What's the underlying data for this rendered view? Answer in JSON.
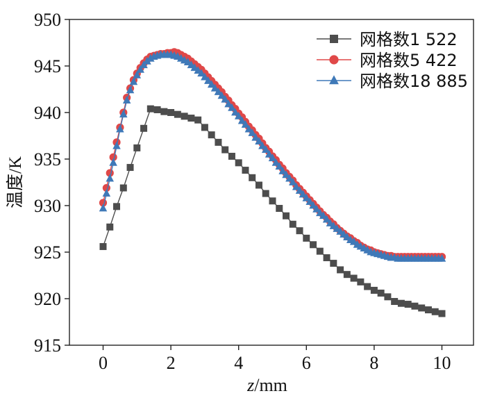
{
  "chart_data": {
    "type": "line",
    "title": "",
    "xlabel_italic": "z",
    "xlabel_rest": "/mm",
    "ylabel": "温度/K",
    "xlim": [
      -1,
      11
    ],
    "ylim": [
      915,
      950
    ],
    "xticks": [
      0,
      2,
      4,
      6,
      8,
      10
    ],
    "yticks": [
      915,
      920,
      925,
      930,
      935,
      940,
      945,
      950
    ],
    "grid": false,
    "legend_position": "top-right",
    "series": [
      {
        "name": "网格数1 522",
        "color": "#4d4d4d",
        "marker": "square",
        "x": [
          0,
          0.2,
          0.4,
          0.6,
          0.8,
          1.0,
          1.2,
          1.4,
          1.6,
          1.8,
          2.0,
          2.2,
          2.4,
          2.6,
          2.8,
          3.0,
          3.2,
          3.4,
          3.6,
          3.8,
          4.0,
          4.2,
          4.4,
          4.6,
          4.8,
          5.0,
          5.2,
          5.4,
          5.6,
          5.8,
          6.0,
          6.2,
          6.4,
          6.6,
          6.8,
          7.0,
          7.2,
          7.4,
          7.6,
          7.8,
          8.0,
          8.2,
          8.4,
          8.6,
          8.8,
          9.0,
          9.2,
          9.4,
          9.6,
          9.8,
          10.0
        ],
        "values": [
          925.6,
          927.7,
          929.9,
          931.9,
          934.1,
          936.2,
          938.3,
          940.4,
          940.3,
          940.1,
          940.0,
          939.8,
          939.6,
          939.4,
          939.2,
          938.4,
          937.6,
          936.8,
          936.0,
          935.3,
          934.6,
          933.8,
          933.0,
          932.2,
          931.3,
          930.5,
          929.7,
          928.9,
          928.0,
          927.3,
          926.5,
          925.8,
          925.1,
          924.4,
          923.8,
          923.1,
          922.6,
          922.2,
          921.8,
          921.3,
          920.9,
          920.6,
          920.2,
          919.7,
          919.5,
          919.4,
          919.2,
          919.0,
          918.8,
          918.6,
          918.4
        ]
      },
      {
        "name": "网格数5 422",
        "color": "#e04848",
        "marker": "circle",
        "x": [
          0,
          0.1,
          0.2,
          0.3,
          0.4,
          0.5,
          0.6,
          0.7,
          0.8,
          0.9,
          1.0,
          1.1,
          1.2,
          1.3,
          1.4,
          1.5,
          1.6,
          1.7,
          1.8,
          1.9,
          2.0,
          2.1,
          2.2,
          2.3,
          2.4,
          2.5,
          2.6,
          2.7,
          2.8,
          2.9,
          3.0,
          3.1,
          3.2,
          3.3,
          3.4,
          3.5,
          3.6,
          3.7,
          3.8,
          3.9,
          4.0,
          4.1,
          4.2,
          4.3,
          4.4,
          4.5,
          4.6,
          4.7,
          4.8,
          4.9,
          5.0,
          5.1,
          5.2,
          5.3,
          5.4,
          5.5,
          5.6,
          5.7,
          5.8,
          5.9,
          6.0,
          6.1,
          6.2,
          6.3,
          6.4,
          6.5,
          6.6,
          6.7,
          6.8,
          6.9,
          7.0,
          7.1,
          7.2,
          7.3,
          7.4,
          7.5,
          7.6,
          7.7,
          7.8,
          7.9,
          8.0,
          8.1,
          8.2,
          8.3,
          8.4,
          8.5,
          8.6,
          8.7,
          8.8,
          8.9,
          9.0,
          9.1,
          9.2,
          9.3,
          9.4,
          9.5,
          9.6,
          9.7,
          9.8,
          9.9,
          10.0
        ],
        "values": [
          930.3,
          931.9,
          933.5,
          935.2,
          936.8,
          938.4,
          940.0,
          941.6,
          942.6,
          943.5,
          944.2,
          944.8,
          945.3,
          945.7,
          946.0,
          946.1,
          946.2,
          946.3,
          946.3,
          946.4,
          946.4,
          946.5,
          946.4,
          946.2,
          946.0,
          945.8,
          945.5,
          945.2,
          944.9,
          944.6,
          944.2,
          943.8,
          943.4,
          943.0,
          942.6,
          942.2,
          941.7,
          941.3,
          940.8,
          940.4,
          939.9,
          939.5,
          939.0,
          938.5,
          938.1,
          937.6,
          937.2,
          936.7,
          936.2,
          935.8,
          935.3,
          934.9,
          934.4,
          934.0,
          933.5,
          933.1,
          932.7,
          932.2,
          931.8,
          931.4,
          931.0,
          930.6,
          930.2,
          929.8,
          929.4,
          929.0,
          928.7,
          928.3,
          928.0,
          927.6,
          927.3,
          927.0,
          926.7,
          926.5,
          926.2,
          926.0,
          925.7,
          925.5,
          925.3,
          925.2,
          925.0,
          924.9,
          924.8,
          924.7,
          924.6,
          924.6,
          924.5,
          924.5,
          924.5,
          924.5,
          924.5,
          924.5,
          924.5,
          924.5,
          924.5,
          924.5,
          924.5,
          924.5,
          924.5,
          924.5,
          924.5
        ]
      },
      {
        "name": "网格数18 885",
        "color": "#3f79b8",
        "marker": "triangle",
        "x": [
          0,
          0.1,
          0.2,
          0.3,
          0.4,
          0.5,
          0.6,
          0.7,
          0.8,
          0.9,
          1.0,
          1.1,
          1.2,
          1.3,
          1.4,
          1.5,
          1.6,
          1.7,
          1.8,
          1.9,
          2.0,
          2.1,
          2.2,
          2.3,
          2.4,
          2.5,
          2.6,
          2.7,
          2.8,
          2.9,
          3.0,
          3.1,
          3.2,
          3.3,
          3.4,
          3.5,
          3.6,
          3.7,
          3.8,
          3.9,
          4.0,
          4.1,
          4.2,
          4.3,
          4.4,
          4.5,
          4.6,
          4.7,
          4.8,
          4.9,
          5.0,
          5.1,
          5.2,
          5.3,
          5.4,
          5.5,
          5.6,
          5.7,
          5.8,
          5.9,
          6.0,
          6.1,
          6.2,
          6.3,
          6.4,
          6.5,
          6.6,
          6.7,
          6.8,
          6.9,
          7.0,
          7.1,
          7.2,
          7.3,
          7.4,
          7.5,
          7.6,
          7.7,
          7.8,
          7.9,
          8.0,
          8.1,
          8.2,
          8.3,
          8.4,
          8.5,
          8.6,
          8.7,
          8.8,
          8.9,
          9.0,
          9.1,
          9.2,
          9.3,
          9.4,
          9.5,
          9.6,
          9.7,
          9.8,
          9.9,
          10.0
        ],
        "values": [
          929.7,
          931.3,
          932.9,
          934.6,
          936.4,
          938.2,
          939.8,
          941.3,
          942.4,
          943.3,
          944.0,
          944.6,
          945.1,
          945.5,
          945.8,
          946.0,
          946.1,
          946.2,
          946.2,
          946.2,
          946.2,
          946.1,
          946.0,
          945.8,
          945.6,
          945.4,
          945.1,
          944.8,
          944.5,
          944.2,
          943.8,
          943.4,
          943.0,
          942.6,
          942.2,
          941.8,
          941.4,
          940.9,
          940.5,
          940.0,
          939.6,
          939.1,
          938.7,
          938.2,
          937.8,
          937.3,
          936.9,
          936.4,
          936.0,
          935.5,
          935.1,
          934.6,
          934.2,
          933.7,
          933.3,
          932.9,
          932.5,
          932.0,
          931.6,
          931.2,
          930.8,
          930.4,
          930.0,
          929.6,
          929.2,
          928.9,
          928.5,
          928.1,
          927.8,
          927.5,
          927.2,
          926.9,
          926.6,
          926.3,
          926.1,
          925.8,
          925.6,
          925.4,
          925.2,
          925.0,
          924.9,
          924.8,
          924.7,
          924.6,
          924.5,
          924.4,
          924.4,
          924.3,
          924.3,
          924.3,
          924.3,
          924.3,
          924.3,
          924.3,
          924.3,
          924.3,
          924.3,
          924.3,
          924.3,
          924.3,
          924.3
        ]
      }
    ]
  }
}
